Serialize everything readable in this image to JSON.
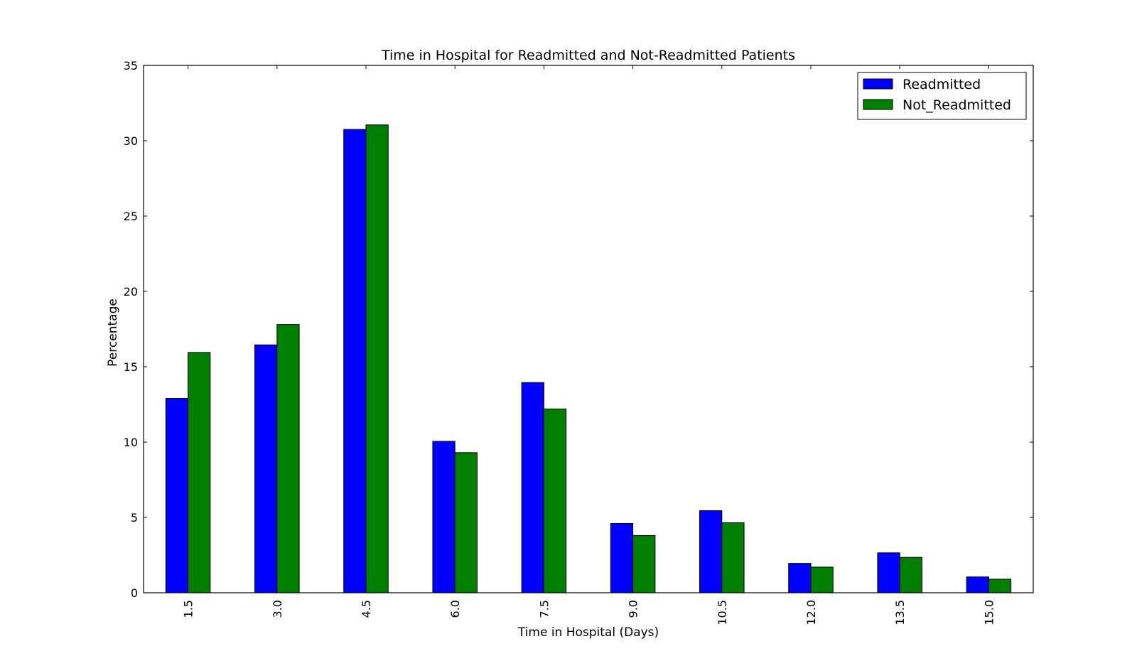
{
  "chart_data": {
    "type": "bar",
    "title": "Time in Hospital for Readmitted and Not-Readmitted Patients",
    "xlabel": "Time in Hospital (Days)",
    "ylabel": "Percentage",
    "categories": [
      "1.5",
      "3.0",
      "4.5",
      "6.0",
      "7.5",
      "9.0",
      "10.5",
      "12.0",
      "13.5",
      "15.0"
    ],
    "series": [
      {
        "name": "Readmitted",
        "color": "#0000ff",
        "values": [
          12.9,
          16.45,
          30.75,
          10.05,
          13.95,
          4.6,
          5.45,
          1.95,
          2.65,
          1.05
        ]
      },
      {
        "name": "Not_Readmitted",
        "color": "#008000",
        "values": [
          15.95,
          17.8,
          31.05,
          9.3,
          12.2,
          3.8,
          4.65,
          1.7,
          2.35,
          0.9
        ]
      }
    ],
    "ylim": [
      0,
      35
    ],
    "yticks": [
      0,
      5,
      10,
      15,
      20,
      25,
      30,
      35
    ],
    "grid": false,
    "legend": "top-right",
    "x_tick_rotation": "vertical"
  }
}
